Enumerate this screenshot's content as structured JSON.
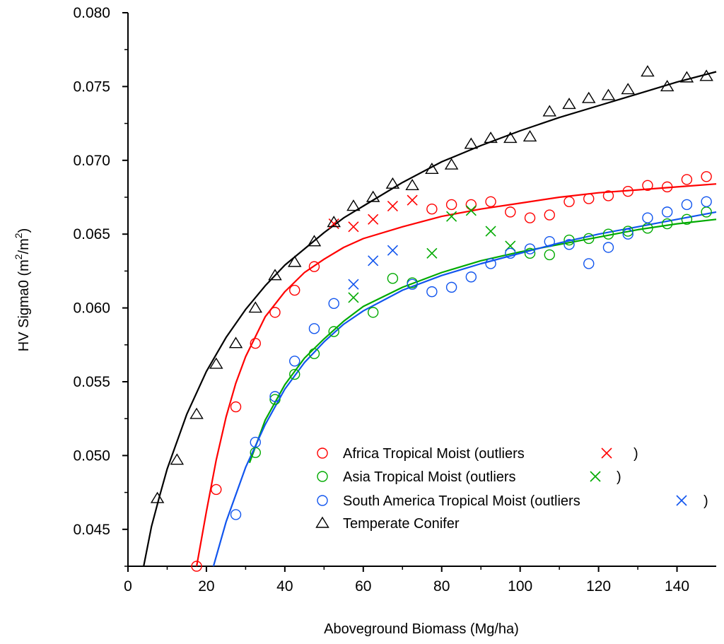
{
  "chart_data": {
    "type": "scatter",
    "xlabel": "Aboveground Biomass (Mg/ha)",
    "ylabel": "HV Sigma0 (m",
    "ylabel_sup": "2",
    "ylabel_mid": "/m",
    "ylabel_sup2": "2",
    "ylabel_end": ")",
    "xlim": [
      0,
      150
    ],
    "ylim": [
      0.0425,
      0.08
    ],
    "xticks": [
      "0",
      "20",
      "40",
      "60",
      "80",
      "100",
      "120",
      "140"
    ],
    "yticks": [
      "0.045",
      "0.050",
      "0.055",
      "0.060",
      "0.065",
      "0.070",
      "0.075",
      "0.080"
    ],
    "legend_position": "bottom-right",
    "series": [
      {
        "name": "Africa Tropical Moist",
        "outlier_label": "(outliers",
        "close": ")",
        "color": "#ff0000",
        "marker": "circle",
        "points": [
          [
            17.5,
            0.0425
          ],
          [
            22.5,
            0.0477
          ],
          [
            27.5,
            0.0533
          ],
          [
            32.5,
            0.0576
          ],
          [
            37.5,
            0.0597
          ],
          [
            42.5,
            0.0612
          ],
          [
            47.5,
            0.0628
          ],
          [
            77.5,
            0.0667
          ],
          [
            82.5,
            0.067
          ],
          [
            87.5,
            0.067
          ],
          [
            92.5,
            0.0672
          ],
          [
            97.5,
            0.0665
          ],
          [
            102.5,
            0.0661
          ],
          [
            107.5,
            0.0663
          ],
          [
            112.5,
            0.0672
          ],
          [
            117.5,
            0.0674
          ],
          [
            122.5,
            0.0676
          ],
          [
            127.5,
            0.0679
          ],
          [
            132.5,
            0.0683
          ],
          [
            137.5,
            0.0682
          ],
          [
            142.5,
            0.0687
          ],
          [
            147.5,
            0.0689
          ]
        ],
        "outliers": [
          [
            52.5,
            0.0657
          ],
          [
            57.5,
            0.0655
          ],
          [
            62.5,
            0.066
          ],
          [
            67.5,
            0.0669
          ],
          [
            72.5,
            0.0673
          ]
        ],
        "fit": [
          [
            17.5,
            0.0425
          ],
          [
            20,
            0.0462
          ],
          [
            22.5,
            0.0497
          ],
          [
            25,
            0.0526
          ],
          [
            27.5,
            0.0549
          ],
          [
            30,
            0.0567
          ],
          [
            35,
            0.0594
          ],
          [
            40,
            0.0611
          ],
          [
            45,
            0.0624
          ],
          [
            50,
            0.0633
          ],
          [
            55,
            0.0641
          ],
          [
            60,
            0.0647
          ],
          [
            70,
            0.0655
          ],
          [
            80,
            0.0662
          ],
          [
            90,
            0.0667
          ],
          [
            100,
            0.0671
          ],
          [
            110,
            0.0675
          ],
          [
            120,
            0.0678
          ],
          [
            130,
            0.068
          ],
          [
            140,
            0.0682
          ],
          [
            150,
            0.0684
          ]
        ]
      },
      {
        "name": "Asia Tropical Moist",
        "outlier_label": "(outliers",
        "close": ")",
        "color": "#00aa00",
        "marker": "circle",
        "points": [
          [
            32.5,
            0.0502
          ],
          [
            37.5,
            0.0538
          ],
          [
            42.5,
            0.0555
          ],
          [
            47.5,
            0.0569
          ],
          [
            52.5,
            0.0584
          ],
          [
            62.5,
            0.0597
          ],
          [
            67.5,
            0.062
          ],
          [
            72.5,
            0.0617
          ],
          [
            102.5,
            0.0637
          ],
          [
            107.5,
            0.0636
          ],
          [
            112.5,
            0.0646
          ],
          [
            117.5,
            0.0647
          ],
          [
            122.5,
            0.065
          ],
          [
            127.5,
            0.0652
          ],
          [
            132.5,
            0.0654
          ],
          [
            137.5,
            0.0657
          ],
          [
            142.5,
            0.066
          ],
          [
            147.5,
            0.0665
          ]
        ],
        "outliers": [
          [
            57.5,
            0.0607
          ],
          [
            77.5,
            0.0637
          ],
          [
            82.5,
            0.0662
          ],
          [
            87.5,
            0.0666
          ],
          [
            92.5,
            0.0652
          ],
          [
            97.5,
            0.0642
          ]
        ],
        "fit": [
          [
            31,
            0.0495
          ],
          [
            35,
            0.0524
          ],
          [
            40,
            0.0548
          ],
          [
            45,
            0.0566
          ],
          [
            50,
            0.0579
          ],
          [
            55,
            0.0591
          ],
          [
            60,
            0.0601
          ],
          [
            70,
            0.0614
          ],
          [
            80,
            0.0624
          ],
          [
            90,
            0.0632
          ],
          [
            100,
            0.0638
          ],
          [
            110,
            0.0643
          ],
          [
            120,
            0.0648
          ],
          [
            130,
            0.0653
          ],
          [
            140,
            0.0657
          ],
          [
            150,
            0.066
          ]
        ]
      },
      {
        "name": "South America Tropical Moist",
        "outlier_label": "(outliers",
        "close": ")",
        "color": "#1155ee",
        "marker": "circle",
        "points": [
          [
            27.5,
            0.046
          ],
          [
            32.5,
            0.0509
          ],
          [
            37.5,
            0.054
          ],
          [
            42.5,
            0.0564
          ],
          [
            47.5,
            0.0586
          ],
          [
            52.5,
            0.0603
          ],
          [
            72.5,
            0.0616
          ],
          [
            77.5,
            0.0611
          ],
          [
            82.5,
            0.0614
          ],
          [
            87.5,
            0.0621
          ],
          [
            92.5,
            0.063
          ],
          [
            97.5,
            0.0637
          ],
          [
            102.5,
            0.064
          ],
          [
            107.5,
            0.0645
          ],
          [
            112.5,
            0.0643
          ],
          [
            117.5,
            0.063
          ],
          [
            122.5,
            0.0641
          ],
          [
            127.5,
            0.065
          ],
          [
            132.5,
            0.0661
          ],
          [
            137.5,
            0.0665
          ],
          [
            142.5,
            0.067
          ],
          [
            147.5,
            0.0672
          ]
        ],
        "outliers": [
          [
            57.5,
            0.0616
          ],
          [
            62.5,
            0.0632
          ],
          [
            67.5,
            0.0639
          ]
        ],
        "fit": [
          [
            21.8,
            0.0425
          ],
          [
            25,
            0.0455
          ],
          [
            30,
            0.0492
          ],
          [
            35,
            0.0521
          ],
          [
            40,
            0.0545
          ],
          [
            45,
            0.0563
          ],
          [
            50,
            0.0577
          ],
          [
            55,
            0.0589
          ],
          [
            60,
            0.0598
          ],
          [
            70,
            0.0612
          ],
          [
            80,
            0.0622
          ],
          [
            90,
            0.063
          ],
          [
            100,
            0.0637
          ],
          [
            110,
            0.0644
          ],
          [
            120,
            0.065
          ],
          [
            130,
            0.0655
          ],
          [
            140,
            0.066
          ],
          [
            150,
            0.0665
          ]
        ]
      },
      {
        "name": "Temperate Conifer",
        "color": "#000000",
        "marker": "triangle",
        "points": [
          [
            7.5,
            0.0471
          ],
          [
            12.5,
            0.0497
          ],
          [
            17.5,
            0.0528
          ],
          [
            22.5,
            0.0562
          ],
          [
            27.5,
            0.0576
          ],
          [
            32.5,
            0.06
          ],
          [
            37.5,
            0.0622
          ],
          [
            42.5,
            0.0631
          ],
          [
            47.5,
            0.0645
          ],
          [
            52.5,
            0.0658
          ],
          [
            57.5,
            0.0669
          ],
          [
            62.5,
            0.0675
          ],
          [
            67.5,
            0.0684
          ],
          [
            72.5,
            0.0683
          ],
          [
            77.5,
            0.0694
          ],
          [
            82.5,
            0.0697
          ],
          [
            87.5,
            0.0711
          ],
          [
            92.5,
            0.0715
          ],
          [
            97.5,
            0.0715
          ],
          [
            102.5,
            0.0716
          ],
          [
            107.5,
            0.0733
          ],
          [
            112.5,
            0.0738
          ],
          [
            117.5,
            0.0742
          ],
          [
            122.5,
            0.0744
          ],
          [
            127.5,
            0.0748
          ],
          [
            132.5,
            0.076
          ],
          [
            137.5,
            0.075
          ],
          [
            142.5,
            0.0756
          ],
          [
            147.5,
            0.0757
          ]
        ],
        "fit": [
          [
            4,
            0.0425
          ],
          [
            6,
            0.0452
          ],
          [
            8,
            0.0472
          ],
          [
            10,
            0.0491
          ],
          [
            15,
            0.0528
          ],
          [
            20,
            0.0557
          ],
          [
            25,
            0.058
          ],
          [
            30,
            0.0599
          ],
          [
            35,
            0.0615
          ],
          [
            40,
            0.0629
          ],
          [
            45,
            0.064
          ],
          [
            50,
            0.0651
          ],
          [
            55,
            0.0661
          ],
          [
            60,
            0.0669
          ],
          [
            70,
            0.0685
          ],
          [
            80,
            0.0699
          ],
          [
            90,
            0.071
          ],
          [
            100,
            0.072
          ],
          [
            110,
            0.0729
          ],
          [
            120,
            0.0737
          ],
          [
            130,
            0.0745
          ],
          [
            140,
            0.0753
          ],
          [
            150,
            0.076
          ]
        ]
      }
    ]
  }
}
